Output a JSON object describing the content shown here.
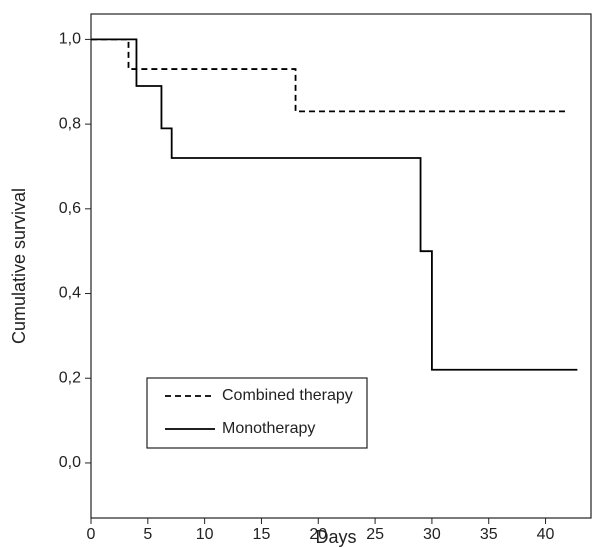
{
  "chart_data": {
    "type": "line",
    "step": "post",
    "x_label": "Days",
    "y_label": "Cumulative survival",
    "xlim": [
      0,
      44
    ],
    "ylim": [
      -0.13,
      1.06
    ],
    "xticks": [
      0,
      5,
      10,
      15,
      20,
      25,
      30,
      35,
      40
    ],
    "yticks": [
      {
        "value": 0,
        "label": "0,0"
      },
      {
        "value": 0.2,
        "label": "0,2"
      },
      {
        "value": 0.4,
        "label": "0,4"
      },
      {
        "value": 0.6,
        "label": "0,6"
      },
      {
        "value": 0.8,
        "label": "0,8"
      },
      {
        "value": 1,
        "label": "1,0"
      }
    ],
    "legend": "lower left",
    "series": [
      {
        "name": "Combined therapy",
        "color": "#000000",
        "linestyle": "dashed",
        "x": [
          0,
          3.3,
          18,
          42
        ],
        "values": [
          1,
          0.93,
          0.83,
          0.83
        ]
      },
      {
        "name": "Monotherapy",
        "color": "#000000",
        "linestyle": "solid",
        "x": [
          0,
          4,
          6.2,
          7.1,
          29,
          30,
          42.8
        ],
        "values": [
          1,
          0.89,
          0.79,
          0.72,
          0.5,
          0.22,
          0.22
        ]
      }
    ]
  }
}
